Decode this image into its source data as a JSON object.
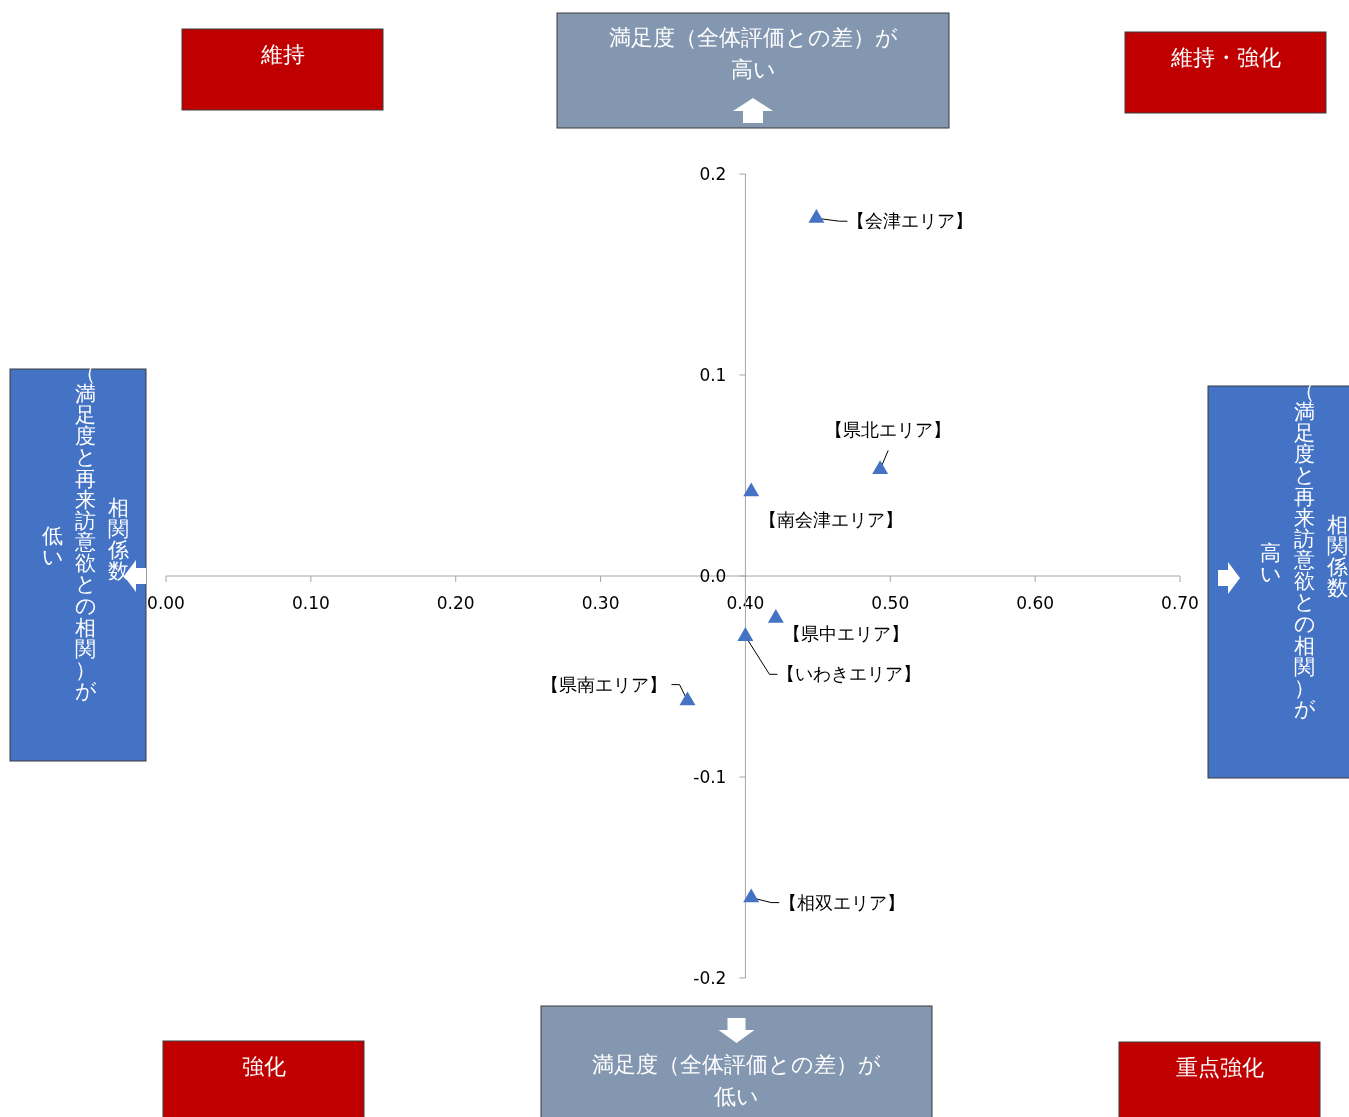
{
  "chart_data": {
    "type": "scatter",
    "x": [
      0.449,
      0.493,
      0.404,
      0.421,
      0.4,
      0.36,
      0.404
    ],
    "series": [
      {
        "color": "#4472c4",
        "values": [
          0.178,
          0.053,
          0.042,
          -0.021,
          -0.03,
          -0.062,
          -0.16
        ]
      }
    ],
    "marker": "triangle",
    "grid": false,
    "xlim": [
      0,
      0.7
    ],
    "xticks": [
      {
        "value": 0,
        "label": "0.00"
      },
      {
        "value": 0.1,
        "label": "0.10"
      },
      {
        "value": 0.2,
        "label": "0.20"
      },
      {
        "value": 0.3,
        "label": "0.30"
      },
      {
        "value": 0.4,
        "label": "0.40"
      },
      {
        "value": 0.5,
        "label": "0.50"
      },
      {
        "value": 0.6,
        "label": "0.60"
      },
      {
        "value": 0.7,
        "label": "0.70"
      }
    ],
    "ylim": [
      -0.2,
      0.2
    ],
    "yticks": [
      {
        "value": -0.2,
        "label": "-0.2"
      },
      {
        "value": -0.1,
        "label": "-0.1"
      },
      {
        "value": 0,
        "label": "0.0"
      },
      {
        "value": 0.1,
        "label": "0.1"
      },
      {
        "value": 0.2,
        "label": "0.2"
      }
    ],
    "annotations": [
      {
        "text": "【会津エリア】",
        "x": 0.449,
        "y": 0.178
      },
      {
        "text": "【県北エリア】",
        "x": 0.493,
        "y": 0.053
      },
      {
        "text": "【南会津エリア】",
        "x": 0.404,
        "y": 0.042
      },
      {
        "text": "【県中エリア】",
        "x": 0.421,
        "y": -0.021
      },
      {
        "text": "【いわきエリア】",
        "x": 0.4,
        "y": -0.03
      },
      {
        "text": "【県南エリア】",
        "x": 0.36,
        "y": -0.062
      },
      {
        "text": "【相双エリア】",
        "x": 0.404,
        "y": -0.16
      },
      "維持",
      "維持・強化",
      "強化",
      "重点強化",
      "満足度（全体評価との差）が高い",
      "満足度（全体評価との差）が低い",
      "相関係数",
      "（満足度と再来訪意欲との相関）が",
      "低い",
      "相関係数",
      "高い",
      "（満足度と再来訪意欲との相関）が"
    ]
  }
}
